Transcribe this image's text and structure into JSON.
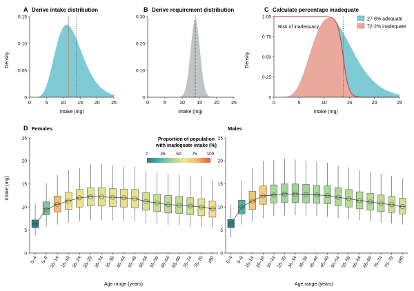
{
  "colors": {
    "intake_fill": "#7ecbd6",
    "requirement_fill": "#c0c4c4",
    "adequate_fill": "#7ecbd6",
    "inadequate_fill": "#eba99d",
    "risk_curve": "#b23a48",
    "mean_line": "#555555",
    "box_scale": [
      "#2b7a8c",
      "#4fb3a6",
      "#a8d89a",
      "#f2e58a",
      "#f6b86b",
      "#e8543a"
    ]
  },
  "panels": {
    "A": {
      "letter": "A",
      "title": "Derive intake distribution",
      "ylabel": "Density",
      "xlabel": "Intake (mg)"
    },
    "B": {
      "letter": "B",
      "title": "Derive requirement distribution",
      "xlabel": "Intake (mg)"
    },
    "C": {
      "letter": "C",
      "title": "Calculate percentage inadequate",
      "ylabel": "Density",
      "xlabel": "Intake (mg)",
      "annotation": "Risk of inadequacy",
      "legend": [
        "27·8% adequate",
        "72·2% inadequate"
      ]
    },
    "D": {
      "letter": "D",
      "colorbar_title_1": "Proportion of population",
      "colorbar_title_2": "with inadequate intake (%)",
      "colorbar_ticks": [
        "0",
        "25",
        "50",
        "75",
        "100"
      ],
      "ylabel": "Intake (mg)",
      "xlabel": "Age range (years)",
      "subplots": [
        {
          "title": "Females"
        },
        {
          "title": "Males"
        }
      ]
    }
  },
  "chart_data": [
    {
      "panel": "A",
      "type": "area",
      "x_ticks": [
        "0",
        "5",
        "10",
        "15",
        "20",
        "25"
      ],
      "y_ticks": [
        "0",
        "0·05",
        "0·10",
        "0·15"
      ],
      "xlim": [
        0,
        25
      ],
      "ylim": [
        0,
        0.15
      ],
      "distribution": {
        "kind": "right-skewed",
        "peak_x": 11,
        "peak_density": 0.135
      },
      "vertical_lines": [
        {
          "x": 11.5,
          "style": "solid"
        },
        {
          "x": 13.8,
          "style": "dotted"
        }
      ]
    },
    {
      "panel": "B",
      "type": "area",
      "x_ticks": [
        "0",
        "5",
        "10",
        "15",
        "20",
        "25"
      ],
      "y_ticks": [
        "0",
        "0·10",
        "0·20",
        "0·30"
      ],
      "xlim": [
        0,
        25
      ],
      "ylim": [
        0,
        0.3
      ],
      "distribution": {
        "kind": "normal",
        "mean": 13.8,
        "peak_density": 0.29
      },
      "vertical_lines": [
        {
          "x": 13.8,
          "style": "dashed"
        }
      ]
    },
    {
      "panel": "C",
      "type": "area",
      "x_ticks": [
        "0",
        "5",
        "10",
        "15",
        "20",
        "25"
      ],
      "y_ticks": [
        "0",
        "0·25",
        "0·50",
        "0·75",
        "1·00"
      ],
      "xlim": [
        0,
        25
      ],
      "ylim": [
        0,
        1.0
      ],
      "series": [
        {
          "name": "27·8% adequate",
          "percent": 27.8
        },
        {
          "name": "72·2% inadequate",
          "percent": 72.2
        }
      ],
      "vertical_lines": [
        {
          "x": 13.8,
          "style": "dotted"
        }
      ]
    },
    {
      "panel": "D",
      "type": "box",
      "y_ticks": [
        "0",
        "5",
        "10",
        "15",
        "20",
        "25"
      ],
      "ylim": [
        0,
        25
      ],
      "categories": [
        "0–4",
        "5–9",
        "10–14",
        "15–19",
        "20–24",
        "25–29",
        "30–34",
        "35–39",
        "40–44",
        "45–49",
        "50–54",
        "55–59",
        "60–64",
        "65–69",
        "70–74",
        "75–79",
        "≥80"
      ],
      "series": [
        {
          "name": "Females",
          "boxes": [
            {
              "min": 3.8,
              "q1": 5.5,
              "median": 6.3,
              "q3": 7.2,
              "max": 10.8,
              "mean": 6.2,
              "pct_inadequate": 2
            },
            {
              "min": 5.8,
              "q1": 8.3,
              "median": 9.6,
              "q3": 11.1,
              "max": 15.2,
              "mean": 9.4,
              "pct_inadequate": 30
            },
            {
              "min": 6.2,
              "q1": 8.9,
              "median": 10.6,
              "q3": 12.4,
              "max": 17.0,
              "mean": 10.6,
              "pct_inadequate": 78
            },
            {
              "min": 6.6,
              "q1": 9.5,
              "median": 11.4,
              "q3": 13.2,
              "max": 18.0,
              "mean": 11.3,
              "pct_inadequate": 62
            },
            {
              "min": 7.0,
              "q1": 10.0,
              "median": 12.0,
              "q3": 13.8,
              "max": 18.5,
              "mean": 12.0,
              "pct_inadequate": 58
            },
            {
              "min": 7.2,
              "q1": 10.3,
              "median": 12.3,
              "q3": 14.2,
              "max": 19.2,
              "mean": 12.2,
              "pct_inadequate": 56
            },
            {
              "min": 7.2,
              "q1": 10.2,
              "median": 12.2,
              "q3": 14.2,
              "max": 19.3,
              "mean": 12.2,
              "pct_inadequate": 56
            },
            {
              "min": 7.1,
              "q1": 10.1,
              "median": 12.1,
              "q3": 14.0,
              "max": 19.0,
              "mean": 12.1,
              "pct_inadequate": 57
            },
            {
              "min": 7.0,
              "q1": 10.0,
              "median": 12.0,
              "q3": 13.9,
              "max": 18.9,
              "mean": 12.0,
              "pct_inadequate": 57
            },
            {
              "min": 6.9,
              "q1": 9.8,
              "median": 11.8,
              "q3": 13.8,
              "max": 18.8,
              "mean": 11.8,
              "pct_inadequate": 57
            },
            {
              "min": 6.5,
              "q1": 9.3,
              "median": 11.3,
              "q3": 13.1,
              "max": 17.8,
              "mean": 11.2,
              "pct_inadequate": 52
            },
            {
              "min": 6.3,
              "q1": 9.0,
              "median": 10.9,
              "q3": 12.8,
              "max": 17.5,
              "mean": 10.9,
              "pct_inadequate": 48
            },
            {
              "min": 6.1,
              "q1": 8.7,
              "median": 10.5,
              "q3": 12.5,
              "max": 17.2,
              "mean": 10.5,
              "pct_inadequate": 45
            },
            {
              "min": 6.0,
              "q1": 8.6,
              "median": 10.4,
              "q3": 12.3,
              "max": 17.0,
              "mean": 10.4,
              "pct_inadequate": 46
            },
            {
              "min": 5.8,
              "q1": 8.3,
              "median": 10.2,
              "q3": 12.0,
              "max": 16.8,
              "mean": 10.2,
              "pct_inadequate": 50
            },
            {
              "min": 5.7,
              "q1": 8.1,
              "median": 10.0,
              "q3": 11.8,
              "max": 16.6,
              "mean": 10.0,
              "pct_inadequate": 55
            },
            {
              "min": 5.4,
              "q1": 7.8,
              "median": 9.6,
              "q3": 11.3,
              "max": 16.0,
              "mean": 9.6,
              "pct_inadequate": 62
            }
          ]
        },
        {
          "name": "Males",
          "boxes": [
            {
              "min": 3.5,
              "q1": 5.5,
              "median": 6.5,
              "q3": 7.3,
              "max": 10.5,
              "mean": 6.4,
              "pct_inadequate": 2
            },
            {
              "min": 6.2,
              "q1": 8.5,
              "median": 10.0,
              "q3": 11.5,
              "max": 15.8,
              "mean": 10.0,
              "pct_inadequate": 20
            },
            {
              "min": 6.8,
              "q1": 9.5,
              "median": 11.3,
              "q3": 13.4,
              "max": 18.5,
              "mean": 11.3,
              "pct_inadequate": 74
            },
            {
              "min": 7.6,
              "q1": 10.6,
              "median": 12.5,
              "q3": 14.6,
              "max": 20.0,
              "mean": 12.4,
              "pct_inadequate": 70
            },
            {
              "min": 8.0,
              "q1": 10.9,
              "median": 12.7,
              "q3": 14.8,
              "max": 20.2,
              "mean": 12.6,
              "pct_inadequate": 40
            },
            {
              "min": 8.2,
              "q1": 11.0,
              "median": 12.9,
              "q3": 15.0,
              "max": 20.5,
              "mean": 12.8,
              "pct_inadequate": 38
            },
            {
              "min": 8.2,
              "q1": 11.0,
              "median": 12.9,
              "q3": 15.0,
              "max": 20.3,
              "mean": 12.8,
              "pct_inadequate": 38
            },
            {
              "min": 8.1,
              "q1": 10.9,
              "median": 12.8,
              "q3": 14.9,
              "max": 20.0,
              "mean": 12.7,
              "pct_inadequate": 38
            },
            {
              "min": 8.0,
              "q1": 10.8,
              "median": 12.7,
              "q3": 14.7,
              "max": 19.8,
              "mean": 12.6,
              "pct_inadequate": 40
            },
            {
              "min": 7.9,
              "q1": 10.7,
              "median": 12.5,
              "q3": 14.6,
              "max": 19.6,
              "mean": 12.5,
              "pct_inadequate": 40
            },
            {
              "min": 7.6,
              "q1": 10.3,
              "median": 12.1,
              "q3": 14.2,
              "max": 19.0,
              "mean": 12.1,
              "pct_inadequate": 42
            },
            {
              "min": 7.4,
              "q1": 10.0,
              "median": 11.8,
              "q3": 13.8,
              "max": 18.6,
              "mean": 11.8,
              "pct_inadequate": 44
            },
            {
              "min": 7.1,
              "q1": 9.6,
              "median": 11.4,
              "q3": 13.3,
              "max": 18.0,
              "mean": 11.4,
              "pct_inadequate": 44
            },
            {
              "min": 6.9,
              "q1": 9.3,
              "median": 11.1,
              "q3": 13.0,
              "max": 17.6,
              "mean": 11.1,
              "pct_inadequate": 44
            },
            {
              "min": 6.6,
              "q1": 9.0,
              "median": 10.8,
              "q3": 12.6,
              "max": 17.2,
              "mean": 10.8,
              "pct_inadequate": 46
            },
            {
              "min": 6.4,
              "q1": 8.8,
              "median": 10.5,
              "q3": 12.3,
              "max": 16.8,
              "mean": 10.5,
              "pct_inadequate": 48
            },
            {
              "min": 6.2,
              "q1": 8.5,
              "median": 10.1,
              "q3": 11.9,
              "max": 16.2,
              "mean": 10.1,
              "pct_inadequate": 52
            }
          ]
        }
      ]
    }
  ]
}
